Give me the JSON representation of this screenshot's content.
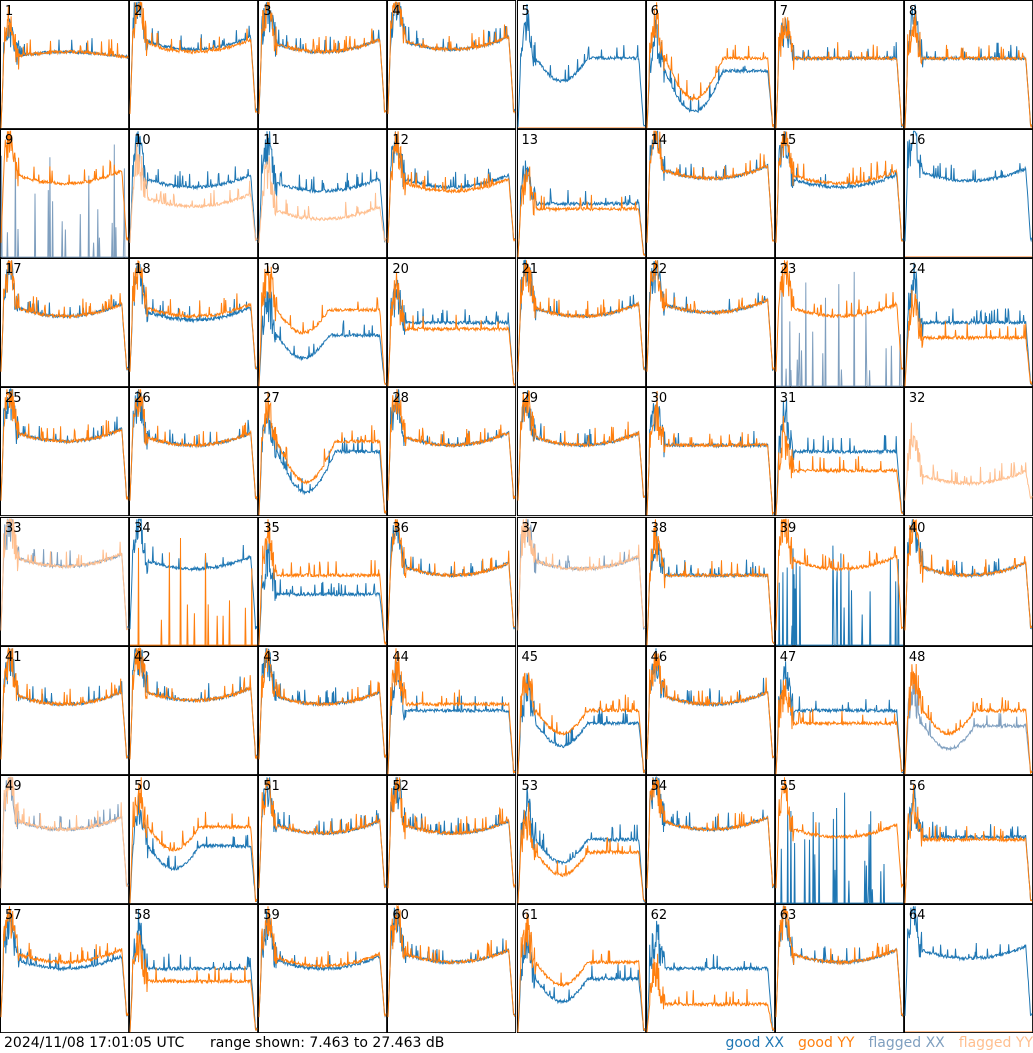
{
  "footer": {
    "timestamp": "2024/11/08 17:01:05 UTC",
    "range": "range shown: 7.463 to 27.463 dB"
  },
  "legend": [
    {
      "label": "good XX",
      "color": "#1f77b4"
    },
    {
      "label": "good YY",
      "color": "#ff7f0e"
    },
    {
      "label": "flagged XX",
      "color": "#7f9fbf"
    },
    {
      "label": "flagged YY",
      "color": "#ffbf8f"
    }
  ],
  "chart_data": {
    "type": "line",
    "grid": "8x8 small multiples",
    "ylim_db": [
      7.463,
      27.463
    ],
    "tiles": [
      {
        "label": "1",
        "shape": "droop",
        "xx": "good",
        "yy": "good",
        "xx_level": 0.55,
        "yy_level": 0.55
      },
      {
        "label": "2",
        "shape": "bowl",
        "xx": "good",
        "yy": "good",
        "xx_level": 0.62,
        "yy_level": 0.6
      },
      {
        "label": "3",
        "shape": "bowl",
        "xx": "good",
        "yy": "good",
        "xx_level": 0.6,
        "yy_level": 0.6
      },
      {
        "label": "4",
        "shape": "bowl",
        "xx": "good",
        "yy": "good",
        "xx_level": 0.62,
        "yy_level": 0.62
      },
      {
        "label": "5",
        "shape": "dip",
        "xx": "good",
        "yy": "flagged-zero",
        "xx_level": 0.55,
        "yy_level": 0.0
      },
      {
        "label": "6",
        "shape": "deepdip",
        "xx": "good",
        "yy": "good",
        "xx_level": 0.45,
        "yy_level": 0.55
      },
      {
        "label": "7",
        "shape": "flat",
        "xx": "good",
        "yy": "good",
        "xx_level": 0.55,
        "yy_level": 0.55
      },
      {
        "label": "8",
        "shape": "flat",
        "xx": "good",
        "yy": "good",
        "xx_level": 0.55,
        "yy_level": 0.55
      },
      {
        "label": "9",
        "shape": "bowl",
        "xx": "flagged-spikes",
        "yy": "good",
        "xx_level": 0.0,
        "yy_level": 0.58
      },
      {
        "label": "10",
        "shape": "bowl",
        "xx": "good",
        "yy": "flagged",
        "xx_level": 0.55,
        "yy_level": 0.4
      },
      {
        "label": "11",
        "shape": "bowl",
        "xx": "good",
        "yy": "flagged",
        "xx_level": 0.52,
        "yy_level": 0.3
      },
      {
        "label": "12",
        "shape": "bowl",
        "xx": "good",
        "yy": "good",
        "xx_level": 0.55,
        "yy_level": 0.52
      },
      {
        "label": "13",
        "shape": "flat",
        "xx": "good",
        "yy": "good",
        "xx_level": 0.42,
        "yy_level": 0.38
      },
      {
        "label": "14",
        "shape": "bowl",
        "xx": "good",
        "yy": "good",
        "xx_level": 0.62,
        "yy_level": 0.62
      },
      {
        "label": "15",
        "shape": "bowl",
        "xx": "good",
        "yy": "good",
        "xx_level": 0.55,
        "yy_level": 0.58
      },
      {
        "label": "16",
        "shape": "bowl",
        "xx": "good",
        "yy": "flagged-zero",
        "xx_level": 0.6,
        "yy_level": 0.0
      },
      {
        "label": "17",
        "shape": "bowl",
        "xx": "good",
        "yy": "good",
        "xx_level": 0.55,
        "yy_level": 0.55
      },
      {
        "label": "18",
        "shape": "bowl",
        "xx": "good",
        "yy": "good",
        "xx_level": 0.52,
        "yy_level": 0.55
      },
      {
        "label": "19",
        "shape": "dip",
        "xx": "good",
        "yy": "good",
        "xx_level": 0.4,
        "yy_level": 0.6
      },
      {
        "label": "20",
        "shape": "flat",
        "xx": "good",
        "yy": "good",
        "xx_level": 0.5,
        "yy_level": 0.45
      },
      {
        "label": "21",
        "shape": "bowl",
        "xx": "good",
        "yy": "good",
        "xx_level": 0.55,
        "yy_level": 0.55
      },
      {
        "label": "22",
        "shape": "bowl",
        "xx": "good",
        "yy": "good",
        "xx_level": 0.58,
        "yy_level": 0.58
      },
      {
        "label": "23",
        "shape": "bowl",
        "xx": "flagged-spikes",
        "yy": "good",
        "xx_level": 0.05,
        "yy_level": 0.55
      },
      {
        "label": "24",
        "shape": "flat",
        "xx": "good",
        "yy": "good",
        "xx_level": 0.5,
        "yy_level": 0.38
      },
      {
        "label": "25",
        "shape": "bowl",
        "xx": "good",
        "yy": "good",
        "xx_level": 0.58,
        "yy_level": 0.58
      },
      {
        "label": "26",
        "shape": "bowl",
        "xx": "good",
        "yy": "good",
        "xx_level": 0.55,
        "yy_level": 0.55
      },
      {
        "label": "27",
        "shape": "deepdip",
        "xx": "good",
        "yy": "good",
        "xx_level": 0.5,
        "yy_level": 0.58
      },
      {
        "label": "28",
        "shape": "bowl",
        "xx": "good",
        "yy": "good",
        "xx_level": 0.55,
        "yy_level": 0.55
      },
      {
        "label": "29",
        "shape": "bowl",
        "xx": "good",
        "yy": "good",
        "xx_level": 0.55,
        "yy_level": 0.55
      },
      {
        "label": "30",
        "shape": "flat",
        "xx": "good",
        "yy": "good",
        "xx_level": 0.55,
        "yy_level": 0.55
      },
      {
        "label": "31",
        "shape": "flat",
        "xx": "good",
        "yy": "good",
        "xx_level": 0.5,
        "yy_level": 0.35
      },
      {
        "label": "32",
        "shape": "bowl",
        "xx": "none",
        "yy": "flagged",
        "xx_level": 0.0,
        "yy_level": 0.25
      },
      {
        "label": "33",
        "shape": "bowl",
        "xx": "flagged",
        "yy": "flagged",
        "xx_level": 0.62,
        "yy_level": 0.62
      },
      {
        "label": "34",
        "shape": "bowl",
        "xx": "good",
        "yy": "good-spikes",
        "xx_level": 0.6,
        "yy_level": 0.0
      },
      {
        "label": "35",
        "shape": "flat",
        "xx": "good",
        "yy": "good",
        "xx_level": 0.4,
        "yy_level": 0.55
      },
      {
        "label": "36",
        "shape": "bowl",
        "xx": "good",
        "yy": "good",
        "xx_level": 0.55,
        "yy_level": 0.55
      },
      {
        "label": "37",
        "shape": "bowl",
        "xx": "flagged",
        "yy": "flagged",
        "xx_level": 0.6,
        "yy_level": 0.6
      },
      {
        "label": "38",
        "shape": "flat",
        "xx": "good",
        "yy": "good",
        "xx_level": 0.55,
        "yy_level": 0.55
      },
      {
        "label": "39",
        "shape": "bowl",
        "xx": "good-spikes",
        "yy": "good",
        "xx_level": 0.0,
        "yy_level": 0.6
      },
      {
        "label": "40",
        "shape": "bowl",
        "xx": "good",
        "yy": "good",
        "xx_level": 0.55,
        "yy_level": 0.55
      },
      {
        "label": "41",
        "shape": "bowl",
        "xx": "good",
        "yy": "good",
        "xx_level": 0.55,
        "yy_level": 0.55
      },
      {
        "label": "42",
        "shape": "bowl",
        "xx": "good",
        "yy": "good",
        "xx_level": 0.58,
        "yy_level": 0.58
      },
      {
        "label": "43",
        "shape": "bowl",
        "xx": "good",
        "yy": "good",
        "xx_level": 0.55,
        "yy_level": 0.55
      },
      {
        "label": "44",
        "shape": "flat",
        "xx": "good",
        "yy": "good",
        "xx_level": 0.5,
        "yy_level": 0.55
      },
      {
        "label": "45",
        "shape": "dip",
        "xx": "good",
        "yy": "good",
        "xx_level": 0.4,
        "yy_level": 0.5
      },
      {
        "label": "46",
        "shape": "bowl",
        "xx": "good",
        "yy": "good",
        "xx_level": 0.55,
        "yy_level": 0.55
      },
      {
        "label": "47",
        "shape": "flat",
        "xx": "good",
        "yy": "good",
        "xx_level": 0.5,
        "yy_level": 0.4
      },
      {
        "label": "48",
        "shape": "dip",
        "xx": "flagged",
        "yy": "good",
        "xx_level": 0.38,
        "yy_level": 0.5
      },
      {
        "label": "49",
        "shape": "bowl",
        "xx": "flagged",
        "yy": "flagged",
        "xx_level": 0.58,
        "yy_level": 0.58
      },
      {
        "label": "50",
        "shape": "dip",
        "xx": "good",
        "yy": "good",
        "xx_level": 0.45,
        "yy_level": 0.6
      },
      {
        "label": "51",
        "shape": "bowl",
        "xx": "good",
        "yy": "good",
        "xx_level": 0.55,
        "yy_level": 0.55
      },
      {
        "label": "52",
        "shape": "bowl",
        "xx": "good",
        "yy": "good",
        "xx_level": 0.55,
        "yy_level": 0.55
      },
      {
        "label": "53",
        "shape": "dip",
        "xx": "good",
        "yy": "good",
        "xx_level": 0.5,
        "yy_level": 0.4
      },
      {
        "label": "54",
        "shape": "bowl",
        "xx": "good",
        "yy": "good",
        "xx_level": 0.58,
        "yy_level": 0.58
      },
      {
        "label": "55",
        "shape": "bowl",
        "xx": "good-spikes",
        "yy": "good",
        "xx_level": 0.0,
        "yy_level": 0.52
      },
      {
        "label": "56",
        "shape": "flat",
        "xx": "good",
        "yy": "good",
        "xx_level": 0.52,
        "yy_level": 0.5
      },
      {
        "label": "57",
        "shape": "bowl",
        "xx": "good",
        "yy": "good",
        "xx_level": 0.5,
        "yy_level": 0.55
      },
      {
        "label": "58",
        "shape": "flat",
        "xx": "good",
        "yy": "good",
        "xx_level": 0.5,
        "yy_level": 0.4
      },
      {
        "label": "59",
        "shape": "bowl",
        "xx": "good",
        "yy": "good",
        "xx_level": 0.5,
        "yy_level": 0.52
      },
      {
        "label": "60",
        "shape": "bowl",
        "xx": "good",
        "yy": "good",
        "xx_level": 0.55,
        "yy_level": 0.55
      },
      {
        "label": "61",
        "shape": "dip",
        "xx": "good",
        "yy": "good",
        "xx_level": 0.42,
        "yy_level": 0.55
      },
      {
        "label": "62",
        "shape": "flat",
        "xx": "good",
        "yy": "good",
        "xx_level": 0.5,
        "yy_level": 0.22
      },
      {
        "label": "63",
        "shape": "bowl",
        "xx": "good",
        "yy": "good",
        "xx_level": 0.55,
        "yy_level": 0.55
      },
      {
        "label": "64",
        "shape": "bowl",
        "xx": "good",
        "yy": "flagged-zero",
        "xx_level": 0.58,
        "yy_level": 0.0
      }
    ]
  }
}
